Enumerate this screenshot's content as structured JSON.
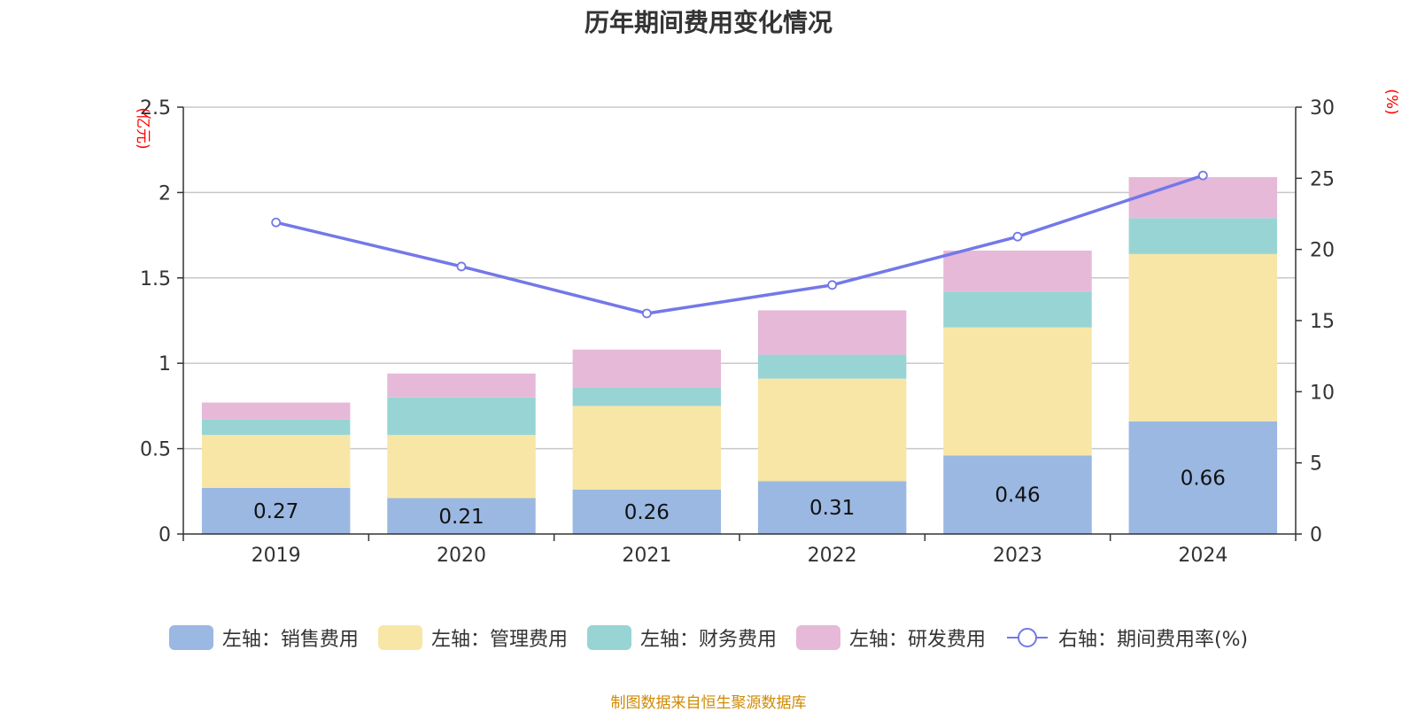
{
  "chart_data": {
    "type": "bar",
    "title": "历年期间费用变化情况",
    "categories": [
      "2019",
      "2020",
      "2021",
      "2022",
      "2023",
      "2024"
    ],
    "y_left": {
      "label": "(亿元)",
      "ylim": [
        0,
        2.5
      ],
      "ticks": [
        "0",
        "0.5",
        "1",
        "1.5",
        "2",
        "2.5"
      ],
      "tick_values": [
        0,
        0.5,
        1,
        1.5,
        2,
        2.5
      ]
    },
    "y_right": {
      "label": "(%)",
      "ylim": [
        0,
        30
      ],
      "ticks": [
        "0",
        "5",
        "10",
        "15",
        "20",
        "25",
        "30"
      ],
      "tick_values": [
        0,
        5,
        10,
        15,
        20,
        25,
        30
      ]
    },
    "grid": true,
    "legend_position": "bottom",
    "series": [
      {
        "name": "左轴：销售费用",
        "type": "bar",
        "axis": "left",
        "color": "#9ab8e2",
        "values": [
          0.27,
          0.21,
          0.26,
          0.31,
          0.46,
          0.66
        ],
        "labels": [
          "0.27",
          "0.21",
          "0.26",
          "0.31",
          "0.46",
          "0.66"
        ]
      },
      {
        "name": "左轴：管理费用",
        "type": "bar",
        "axis": "left",
        "color": "#f7e6a6",
        "values": [
          0.31,
          0.37,
          0.49,
          0.6,
          0.75,
          0.98
        ]
      },
      {
        "name": "左轴：财务费用",
        "type": "bar",
        "axis": "left",
        "color": "#98d4d4",
        "values": [
          0.09,
          0.22,
          0.11,
          0.14,
          0.21,
          0.21
        ]
      },
      {
        "name": "左轴：研发费用",
        "type": "bar",
        "axis": "left",
        "color": "#e6b9d8",
        "values": [
          0.1,
          0.14,
          0.22,
          0.26,
          0.24,
          0.24
        ]
      },
      {
        "name": "右轴：期间费用率(%)",
        "type": "line",
        "axis": "right",
        "color": "#7378e8",
        "values": [
          21.9,
          18.8,
          15.5,
          17.5,
          20.9,
          25.2
        ]
      }
    ]
  },
  "source": "制图数据来自恒生聚源数据库"
}
